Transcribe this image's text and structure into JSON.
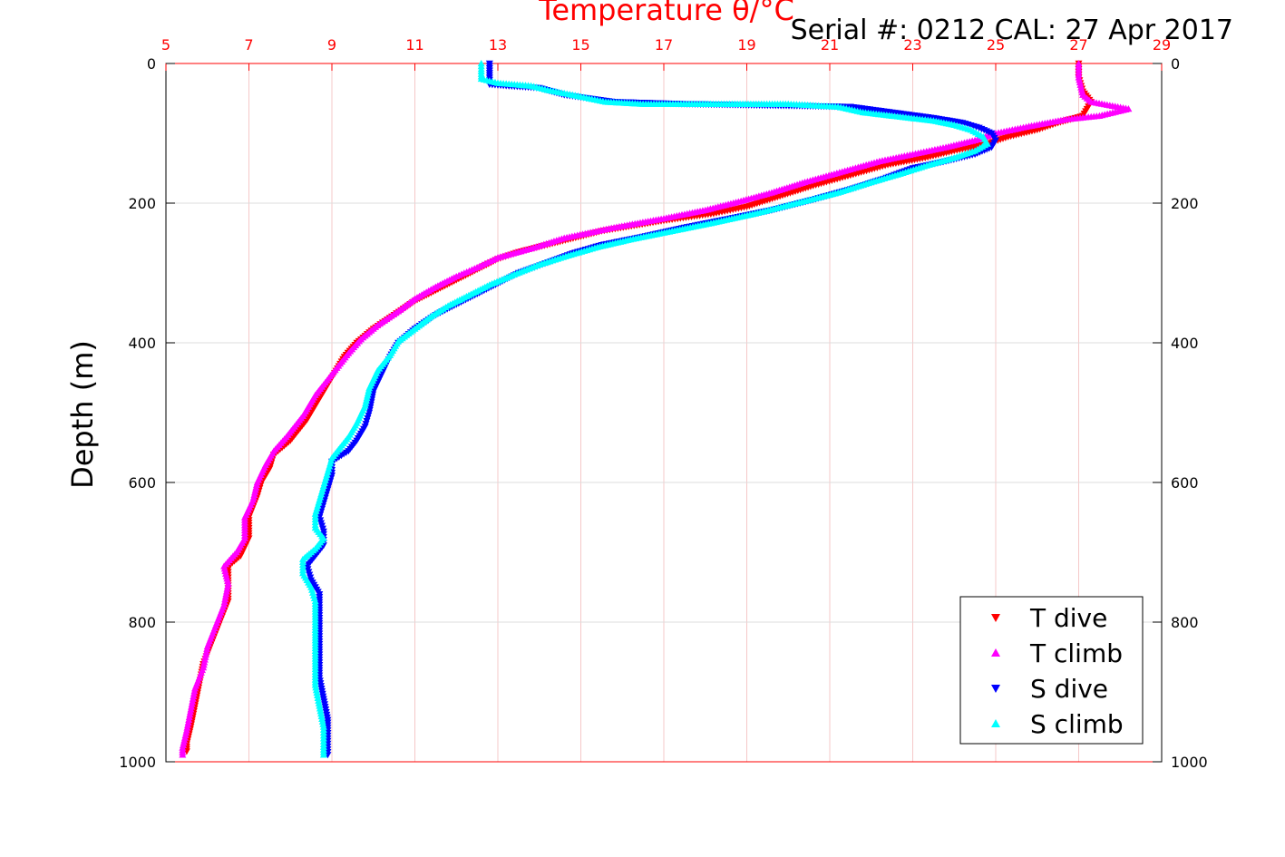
{
  "serial_text": "Serial #: 0212  CAL: 27 Apr 2017",
  "chart_data": {
    "type": "scatter",
    "title": "Temperature θ/°C",
    "xlabel": "Temperature θ/°C",
    "ylabel": "Depth (m)",
    "xlim": [
      5,
      29
    ],
    "ylim": [
      0,
      1000
    ],
    "y_reversed": true,
    "x_axis_position": "top",
    "x_ticks": [
      5,
      7,
      9,
      11,
      13,
      15,
      17,
      19,
      21,
      23,
      25,
      27,
      29
    ],
    "y_ticks": [
      0,
      200,
      400,
      600,
      800,
      1000
    ],
    "grid": true,
    "legend_position": "bottom-right",
    "colors": {
      "x_axis": "#ff0000",
      "grid_x": "#f5c8c8",
      "grid_y": "#dddddd",
      "T dive": "#ff0000",
      "T climb": "#ff00ff",
      "S dive": "#0000ff",
      "S climb": "#00ffff"
    },
    "series": [
      {
        "name": "T dive",
        "marker": "triangle-down",
        "color": "#ff0000",
        "points": [
          [
            27.0,
            0
          ],
          [
            27.0,
            20
          ],
          [
            27.1,
            40
          ],
          [
            27.3,
            55
          ],
          [
            27.2,
            65
          ],
          [
            27.1,
            75
          ],
          [
            26.5,
            85
          ],
          [
            26.0,
            95
          ],
          [
            25.3,
            105
          ],
          [
            24.8,
            115
          ],
          [
            24.0,
            125
          ],
          [
            23.3,
            135
          ],
          [
            22.4,
            145
          ],
          [
            21.5,
            160
          ],
          [
            20.6,
            175
          ],
          [
            19.8,
            190
          ],
          [
            19.0,
            205
          ],
          [
            18.2,
            215
          ],
          [
            17.0,
            225
          ],
          [
            15.5,
            240
          ],
          [
            14.5,
            255
          ],
          [
            13.5,
            270
          ],
          [
            13.0,
            280
          ],
          [
            12.5,
            295
          ],
          [
            12.0,
            310
          ],
          [
            11.5,
            325
          ],
          [
            11.0,
            340
          ],
          [
            10.5,
            360
          ],
          [
            10.0,
            380
          ],
          [
            9.6,
            400
          ],
          [
            9.3,
            420
          ],
          [
            9.0,
            450
          ],
          [
            8.7,
            480
          ],
          [
            8.4,
            510
          ],
          [
            8.0,
            540
          ],
          [
            7.6,
            560
          ],
          [
            7.5,
            580
          ],
          [
            7.3,
            600
          ],
          [
            7.2,
            620
          ],
          [
            7.0,
            650
          ],
          [
            7.0,
            680
          ],
          [
            6.8,
            705
          ],
          [
            6.5,
            720
          ],
          [
            6.5,
            740
          ],
          [
            6.5,
            770
          ],
          [
            6.3,
            800
          ],
          [
            6.1,
            830
          ],
          [
            5.9,
            860
          ],
          [
            5.8,
            890
          ],
          [
            5.7,
            920
          ],
          [
            5.6,
            950
          ],
          [
            5.5,
            975
          ],
          [
            5.5,
            985
          ]
        ]
      },
      {
        "name": "T climb",
        "marker": "triangle-up",
        "color": "#ff00ff",
        "points": [
          [
            27.0,
            0
          ],
          [
            27.0,
            20
          ],
          [
            27.1,
            45
          ],
          [
            27.3,
            55
          ],
          [
            28.2,
            65
          ],
          [
            27.5,
            75
          ],
          [
            26.7,
            80
          ],
          [
            25.8,
            90
          ],
          [
            25.0,
            100
          ],
          [
            24.5,
            110
          ],
          [
            23.8,
            120
          ],
          [
            23.0,
            130
          ],
          [
            22.2,
            140
          ],
          [
            21.3,
            155
          ],
          [
            20.4,
            170
          ],
          [
            19.6,
            185
          ],
          [
            18.8,
            198
          ],
          [
            18.0,
            210
          ],
          [
            17.0,
            222
          ],
          [
            15.8,
            235
          ],
          [
            14.6,
            250
          ],
          [
            13.8,
            265
          ],
          [
            13.0,
            278
          ],
          [
            12.5,
            292
          ],
          [
            12.0,
            305
          ],
          [
            11.5,
            320
          ],
          [
            11.0,
            337
          ],
          [
            10.6,
            355
          ],
          [
            10.1,
            375
          ],
          [
            9.7,
            395
          ],
          [
            9.4,
            415
          ],
          [
            9.0,
            445
          ],
          [
            8.6,
            475
          ],
          [
            8.3,
            505
          ],
          [
            7.9,
            535
          ],
          [
            7.6,
            555
          ],
          [
            7.4,
            575
          ],
          [
            7.2,
            600
          ],
          [
            7.1,
            625
          ],
          [
            6.9,
            650
          ],
          [
            6.9,
            680
          ],
          [
            6.7,
            700
          ],
          [
            6.4,
            720
          ],
          [
            6.5,
            745
          ],
          [
            6.4,
            775
          ],
          [
            6.2,
            805
          ],
          [
            6.0,
            835
          ],
          [
            5.9,
            865
          ],
          [
            5.7,
            895
          ],
          [
            5.6,
            925
          ],
          [
            5.5,
            955
          ],
          [
            5.4,
            980
          ],
          [
            5.4,
            990
          ]
        ]
      },
      {
        "name": "S dive",
        "marker": "triangle-down",
        "color": "#0000ff",
        "points": [
          [
            12.8,
            0
          ],
          [
            12.8,
            10
          ],
          [
            12.8,
            20
          ],
          [
            12.8,
            30
          ],
          [
            13.2,
            32
          ],
          [
            14.0,
            35
          ],
          [
            14.6,
            45
          ],
          [
            15.2,
            50
          ],
          [
            15.8,
            55
          ],
          [
            17.5,
            58
          ],
          [
            19.5,
            60
          ],
          [
            21.5,
            62
          ],
          [
            22.5,
            70
          ],
          [
            23.5,
            78
          ],
          [
            24.2,
            85
          ],
          [
            24.6,
            92
          ],
          [
            24.9,
            100
          ],
          [
            25.0,
            110
          ],
          [
            24.9,
            120
          ],
          [
            24.5,
            130
          ],
          [
            23.8,
            140
          ],
          [
            23.0,
            150
          ],
          [
            22.3,
            165
          ],
          [
            21.5,
            180
          ],
          [
            20.6,
            195
          ],
          [
            19.6,
            210
          ],
          [
            18.6,
            222
          ],
          [
            17.5,
            235
          ],
          [
            16.5,
            248
          ],
          [
            15.5,
            260
          ],
          [
            14.8,
            272
          ],
          [
            14.2,
            285
          ],
          [
            13.5,
            300
          ],
          [
            13.0,
            315
          ],
          [
            12.5,
            330
          ],
          [
            12.0,
            345
          ],
          [
            11.5,
            360
          ],
          [
            11.0,
            380
          ],
          [
            10.6,
            400
          ],
          [
            10.4,
            420
          ],
          [
            10.2,
            445
          ],
          [
            10.0,
            470
          ],
          [
            9.9,
            500
          ],
          [
            9.8,
            520
          ],
          [
            9.6,
            540
          ],
          [
            9.4,
            555
          ],
          [
            9.0,
            570
          ],
          [
            9.0,
            590
          ],
          [
            8.9,
            610
          ],
          [
            8.8,
            630
          ],
          [
            8.7,
            650
          ],
          [
            8.8,
            670
          ],
          [
            8.8,
            690
          ],
          [
            8.6,
            705
          ],
          [
            8.4,
            720
          ],
          [
            8.5,
            740
          ],
          [
            8.7,
            760
          ],
          [
            8.7,
            790
          ],
          [
            8.7,
            820
          ],
          [
            8.7,
            850
          ],
          [
            8.7,
            880
          ],
          [
            8.8,
            910
          ],
          [
            8.9,
            940
          ],
          [
            8.9,
            970
          ],
          [
            8.9,
            990
          ]
        ]
      },
      {
        "name": "S climb",
        "marker": "triangle-up",
        "color": "#00ffff",
        "points": [
          [
            12.6,
            0
          ],
          [
            12.6,
            8
          ],
          [
            12.6,
            15
          ],
          [
            12.6,
            22
          ],
          [
            13.0,
            28
          ],
          [
            13.8,
            32
          ],
          [
            14.2,
            38
          ],
          [
            14.8,
            45
          ],
          [
            15.2,
            50
          ],
          [
            15.6,
            55
          ],
          [
            16.5,
            58
          ],
          [
            18.0,
            58
          ],
          [
            20.0,
            58
          ],
          [
            21.2,
            62
          ],
          [
            21.8,
            70
          ],
          [
            22.5,
            75
          ],
          [
            23.5,
            82
          ],
          [
            24.0,
            88
          ],
          [
            24.4,
            95
          ],
          [
            24.7,
            105
          ],
          [
            24.8,
            115
          ],
          [
            24.5,
            125
          ],
          [
            24.0,
            135
          ],
          [
            23.4,
            145
          ],
          [
            22.7,
            158
          ],
          [
            22.0,
            170
          ],
          [
            21.2,
            185
          ],
          [
            20.2,
            200
          ],
          [
            19.2,
            215
          ],
          [
            18.2,
            228
          ],
          [
            17.2,
            240
          ],
          [
            16.2,
            252
          ],
          [
            15.4,
            263
          ],
          [
            14.7,
            275
          ],
          [
            14.0,
            288
          ],
          [
            13.4,
            302
          ],
          [
            12.8,
            317
          ],
          [
            12.3,
            332
          ],
          [
            11.8,
            347
          ],
          [
            11.4,
            362
          ],
          [
            11.0,
            380
          ],
          [
            10.6,
            398
          ],
          [
            10.4,
            418
          ],
          [
            10.1,
            440
          ],
          [
            9.9,
            465
          ],
          [
            9.8,
            490
          ],
          [
            9.6,
            515
          ],
          [
            9.4,
            535
          ],
          [
            9.2,
            550
          ],
          [
            9.0,
            565
          ],
          [
            8.9,
            585
          ],
          [
            8.8,
            605
          ],
          [
            8.7,
            625
          ],
          [
            8.6,
            645
          ],
          [
            8.6,
            665
          ],
          [
            8.8,
            680
          ],
          [
            8.6,
            695
          ],
          [
            8.3,
            710
          ],
          [
            8.3,
            730
          ],
          [
            8.5,
            750
          ],
          [
            8.6,
            770
          ],
          [
            8.6,
            800
          ],
          [
            8.6,
            830
          ],
          [
            8.6,
            860
          ],
          [
            8.6,
            890
          ],
          [
            8.7,
            920
          ],
          [
            8.8,
            950
          ],
          [
            8.8,
            975
          ],
          [
            8.8,
            990
          ]
        ]
      }
    ]
  }
}
